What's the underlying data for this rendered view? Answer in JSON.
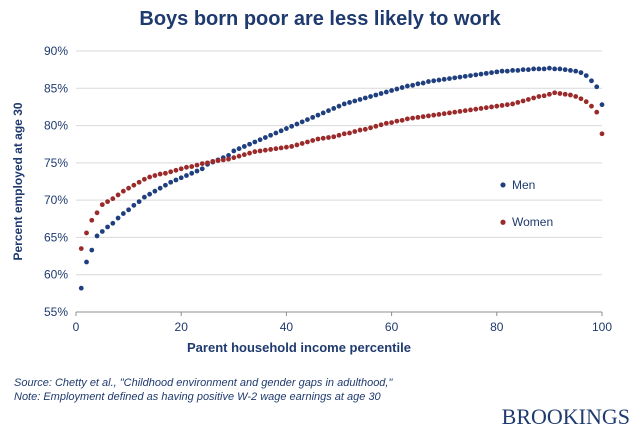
{
  "chart_data": {
    "type": "scatter",
    "title": "Boys born poor are less likely to work",
    "xlabel": "Parent household income percentile",
    "ylabel": "Percent employed at age 30",
    "xlim": [
      0,
      100
    ],
    "ylim": [
      55,
      90
    ],
    "x_ticks": [
      0,
      20,
      40,
      60,
      80,
      100
    ],
    "x_tick_labels": [
      "0",
      "20",
      "40",
      "60",
      "80",
      "100"
    ],
    "y_ticks": [
      55,
      60,
      65,
      70,
      75,
      80,
      85,
      90
    ],
    "y_tick_labels": [
      "55%",
      "60%",
      "65%",
      "70%",
      "75%",
      "80%",
      "85%",
      "90%"
    ],
    "grid": "horizontal",
    "legend_position": "right",
    "series": [
      {
        "name": "Men",
        "color": "#1f3f7f",
        "values": [
          58.2,
          61.7,
          63.3,
          65.2,
          65.8,
          66.4,
          66.9,
          67.6,
          68.2,
          68.7,
          69.3,
          69.8,
          70.4,
          70.8,
          71.2,
          71.6,
          72.0,
          72.4,
          72.7,
          73.0,
          73.3,
          73.6,
          73.9,
          74.2,
          74.8,
          75.1,
          75.4,
          75.7,
          76.0,
          76.6,
          76.9,
          77.2,
          77.5,
          77.8,
          78.1,
          78.4,
          78.7,
          79.0,
          79.3,
          79.6,
          79.9,
          80.2,
          80.5,
          80.8,
          81.1,
          81.4,
          81.7,
          82.0,
          82.3,
          82.6,
          82.9,
          83.1,
          83.3,
          83.5,
          83.7,
          83.9,
          84.1,
          84.3,
          84.5,
          84.7,
          84.9,
          85.1,
          85.3,
          85.4,
          85.6,
          85.7,
          85.9,
          86.0,
          86.1,
          86.2,
          86.3,
          86.4,
          86.5,
          86.6,
          86.7,
          86.8,
          86.9,
          87.0,
          87.1,
          87.2,
          87.3,
          87.3,
          87.4,
          87.4,
          87.5,
          87.5,
          87.6,
          87.6,
          87.6,
          87.7,
          87.6,
          87.6,
          87.5,
          87.4,
          87.3,
          87.1,
          86.7,
          86.0,
          85.2,
          82.8
        ]
      },
      {
        "name": "Women",
        "color": "#9b2a2a",
        "values": [
          63.5,
          65.6,
          67.3,
          68.3,
          69.4,
          69.8,
          70.2,
          70.7,
          71.2,
          71.6,
          72.0,
          72.4,
          72.8,
          73.1,
          73.3,
          73.5,
          73.6,
          73.8,
          74.0,
          74.2,
          74.4,
          74.5,
          74.7,
          74.9,
          75.0,
          75.2,
          75.3,
          75.4,
          75.5,
          75.7,
          75.9,
          76.1,
          76.3,
          76.5,
          76.6,
          76.7,
          76.8,
          76.9,
          77.0,
          77.1,
          77.2,
          77.4,
          77.6,
          77.8,
          78.0,
          78.2,
          78.3,
          78.4,
          78.5,
          78.7,
          78.9,
          79.0,
          79.2,
          79.4,
          79.5,
          79.7,
          79.9,
          80.1,
          80.3,
          80.4,
          80.6,
          80.7,
          80.9,
          81.0,
          81.1,
          81.2,
          81.3,
          81.4,
          81.5,
          81.6,
          81.7,
          81.8,
          81.9,
          82.0,
          82.1,
          82.2,
          82.3,
          82.4,
          82.5,
          82.6,
          82.7,
          82.8,
          82.9,
          83.1,
          83.3,
          83.5,
          83.7,
          83.9,
          84.0,
          84.2,
          84.4,
          84.3,
          84.2,
          84.1,
          83.9,
          83.6,
          83.2,
          82.6,
          81.8,
          78.9
        ]
      }
    ]
  },
  "source": {
    "line1": "Source: Chetty et al., \"Childhood environment and gender gaps in adulthood,\"",
    "line2": "Note: Employment defined as having positive W-2 wage earnings at age 30"
  },
  "brand": "BROOKINGS"
}
